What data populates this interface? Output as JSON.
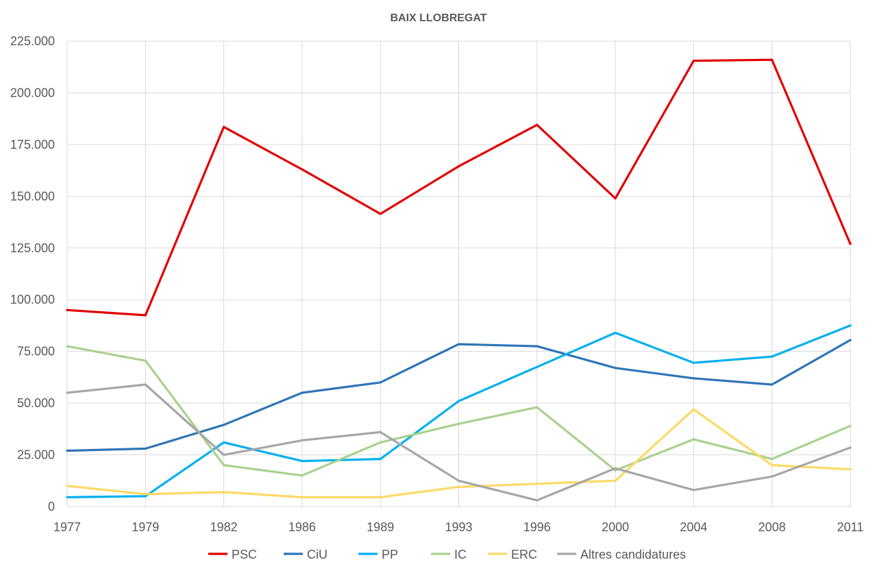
{
  "chart_data": {
    "type": "line",
    "title": "BAIX LLOBREGAT",
    "xlabel": "",
    "ylabel": "",
    "categories": [
      "1977",
      "1979",
      "1982",
      "1986",
      "1989",
      "1993",
      "1996",
      "2000",
      "2004",
      "2008",
      "2011"
    ],
    "ylim": [
      0,
      225000
    ],
    "yticks": [
      0,
      25000,
      50000,
      75000,
      100000,
      125000,
      150000,
      175000,
      200000,
      225000
    ],
    "ytick_labels": [
      "0",
      "25.000",
      "50.000",
      "75.000",
      "100.000",
      "125.000",
      "150.000",
      "175.000",
      "200.000",
      "225.000"
    ],
    "grid": "horizontal and vertical",
    "legend_position": "bottom",
    "series": [
      {
        "name": "PSC",
        "color": "#E00000",
        "values": [
          95000,
          92500,
          183500,
          163000,
          141500,
          164500,
          184500,
          149000,
          215500,
          216000,
          127000
        ]
      },
      {
        "name": "CiU",
        "color": "#2E75B6",
        "values": [
          27000,
          28000,
          39500,
          55000,
          60000,
          78500,
          77500,
          67000,
          62000,
          59000,
          80500
        ]
      },
      {
        "name": "PP",
        "color": "#00B0F0",
        "values": [
          4500,
          5000,
          31000,
          22000,
          23000,
          51000,
          67500,
          84000,
          69500,
          72500,
          87500
        ]
      },
      {
        "name": "IC",
        "color": "#A9D18E",
        "values": [
          77500,
          70500,
          20000,
          15000,
          31000,
          40000,
          48000,
          17500,
          32500,
          23000,
          39000
        ]
      },
      {
        "name": "ERC",
        "color": "#FFD966",
        "values": [
          10000,
          6000,
          7000,
          4500,
          4500,
          9500,
          11000,
          12500,
          47000,
          20000,
          18000
        ]
      },
      {
        "name": "Altres candidatures",
        "color": "#A6A6A6",
        "values": [
          55000,
          59000,
          25000,
          32000,
          36000,
          12500,
          3000,
          18500,
          8000,
          14500,
          28500
        ]
      }
    ]
  }
}
